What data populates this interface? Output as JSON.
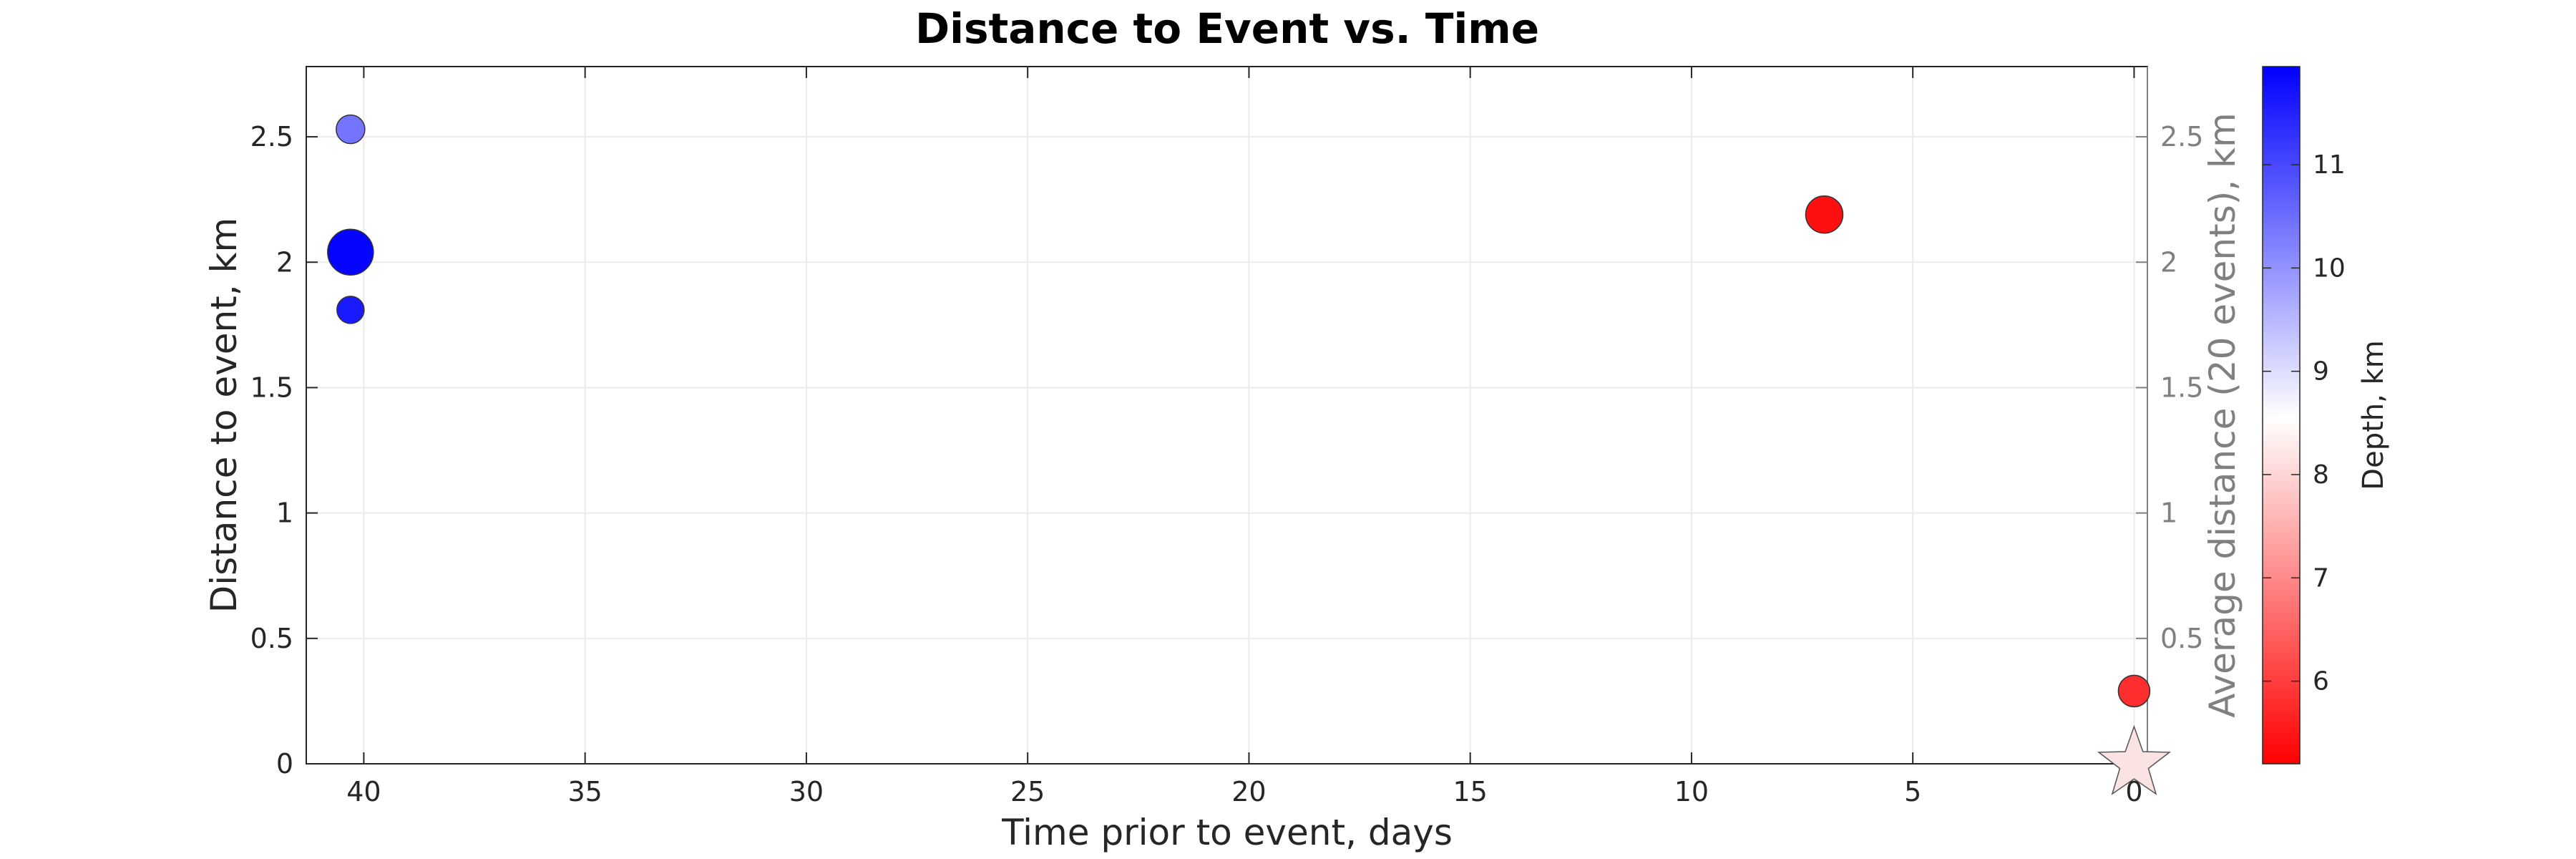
{
  "chart_data": {
    "type": "scatter",
    "title": "Distance to Event vs. Time",
    "xlabel": "Time prior to event, days",
    "ylabel": "Distance to event, km",
    "ylabel_right": "Average distance (20 events), km",
    "xlim": [
      41.3,
      -0.3
    ],
    "ylim": [
      0,
      2.78
    ],
    "x_reversed": true,
    "x_ticks": [
      40,
      35,
      30,
      25,
      20,
      15,
      10,
      5,
      0
    ],
    "x_tick_labels": [
      "40",
      "35",
      "30",
      "25",
      "20",
      "15",
      "10",
      "5",
      "0"
    ],
    "y_ticks": [
      0,
      0.5,
      1,
      1.5,
      2,
      2.5
    ],
    "y_tick_labels": [
      "0",
      "0.5",
      "1",
      "1.5",
      "2",
      "2.5"
    ],
    "y_right_tick_labels": [
      "0.5",
      "1",
      "1.5",
      "2",
      "2.5"
    ],
    "grid": true,
    "points": [
      {
        "x": 40.3,
        "y": 2.53,
        "depth": 10.4,
        "magnitude": 1.2
      },
      {
        "x": 40.3,
        "y": 2.04,
        "depth": 11.9,
        "magnitude": 2.4
      },
      {
        "x": 40.3,
        "y": 1.81,
        "depth": 11.6,
        "magnitude": 1.1
      },
      {
        "x": 7.0,
        "y": 2.19,
        "depth": 5.4,
        "magnitude": 1.8
      },
      {
        "x": 0.0,
        "y": 0.29,
        "depth": 5.8,
        "magnitude": 1.4
      }
    ],
    "main_event": {
      "x": 0,
      "y": 0,
      "marker": "star",
      "color": "#fbe3e3"
    },
    "colorbar": {
      "label": "Depth, km",
      "range": [
        5.2,
        11.95
      ],
      "ticks": [
        6,
        7,
        8,
        9,
        10,
        11
      ],
      "tick_labels": [
        "6",
        "7",
        "8",
        "9",
        "10",
        "11"
      ],
      "colors": {
        "low": "#ff0000",
        "mid": "#ffffff",
        "high": "#0000ff"
      },
      "mid_value": 8.55
    },
    "colors": {
      "axes": "#262626",
      "right_axis": "#808080",
      "grid": "#ebebeb",
      "marker_edge": "#333333"
    }
  }
}
